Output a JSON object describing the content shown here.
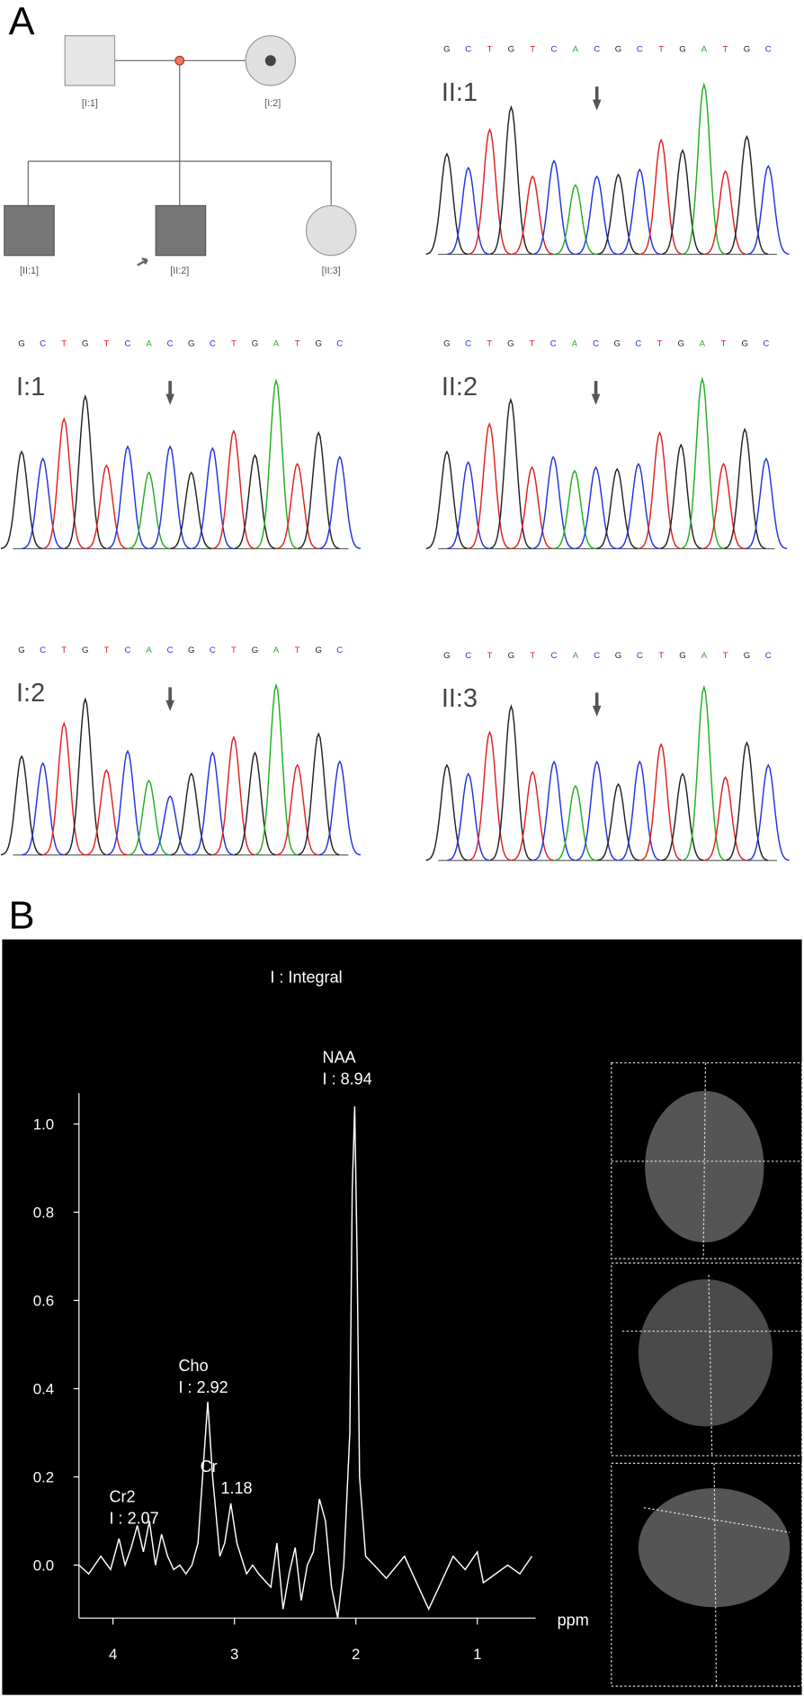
{
  "panel_a": {
    "label": "A",
    "pedigree": {
      "nodes": [
        {
          "label": "[I:1]"
        },
        {
          "label": "[I:2]"
        },
        {
          "label": "[II:1]"
        },
        {
          "label": "[II:2]"
        },
        {
          "label": "[II:3]"
        }
      ]
    },
    "sequence": [
      "G",
      "C",
      "T",
      "G",
      "T",
      "C",
      "A",
      "C",
      "G",
      "C",
      "T",
      "G",
      "A",
      "T",
      "G",
      "C"
    ],
    "base_colors": {
      "G": "#222222",
      "C": "#2233dd",
      "T": "#e02020",
      "A": "#20b020"
    },
    "chromatograms": [
      {
        "label": "II:1",
        "peaks": [
          0.58,
          0.5,
          0.72,
          0.85,
          0.45,
          0.54,
          0.4,
          0.45,
          0.46,
          0.49,
          0.66,
          0.6,
          0.98,
          0.48,
          0.68,
          0.51
        ]
      },
      {
        "label": "I:1",
        "peaks": [
          0.56,
          0.52,
          0.75,
          0.88,
          0.48,
          0.59,
          0.44,
          0.59,
          0.44,
          0.58,
          0.68,
          0.54,
          0.97,
          0.49,
          0.67,
          0.53
        ]
      },
      {
        "label": "II:2",
        "peaks": [
          0.56,
          0.5,
          0.72,
          0.86,
          0.47,
          0.53,
          0.45,
          0.47,
          0.46,
          0.49,
          0.67,
          0.6,
          0.98,
          0.49,
          0.69,
          0.52
        ]
      },
      {
        "label": "I:2",
        "peaks": [
          0.57,
          0.53,
          0.76,
          0.9,
          0.49,
          0.6,
          0.43,
          0.34,
          0.47,
          0.59,
          0.68,
          0.59,
          0.98,
          0.52,
          0.7,
          0.54
        ]
      },
      {
        "label": "II:3",
        "peaks": [
          0.55,
          0.5,
          0.74,
          0.89,
          0.51,
          0.57,
          0.43,
          0.57,
          0.44,
          0.57,
          0.67,
          0.5,
          1.0,
          0.48,
          0.68,
          0.55
        ]
      }
    ]
  },
  "chart_data": {
    "type": "line",
    "panel_label": "B",
    "title": "I : Integral",
    "x_label": "ppm",
    "color": "#ffffff",
    "x": [
      4.28,
      4.2,
      4.1,
      4.02,
      3.95,
      3.9,
      3.85,
      3.8,
      3.75,
      3.7,
      3.65,
      3.6,
      3.55,
      3.5,
      3.45,
      3.4,
      3.35,
      3.3,
      3.25,
      3.22,
      3.18,
      3.12,
      3.08,
      3.03,
      2.98,
      2.9,
      2.85,
      2.8,
      2.7,
      2.65,
      2.6,
      2.55,
      2.5,
      2.45,
      2.4,
      2.35,
      2.3,
      2.25,
      2.2,
      2.15,
      2.1,
      2.05,
      2.03,
      2.01,
      1.99,
      1.97,
      1.92,
      1.85,
      1.75,
      1.6,
      1.5,
      1.4,
      1.3,
      1.2,
      1.1,
      1.0,
      0.95,
      0.85,
      0.75,
      0.65,
      0.55
    ],
    "values": [
      0.0,
      -0.02,
      0.02,
      -0.01,
      0.06,
      0.0,
      0.04,
      0.09,
      0.03,
      0.1,
      0.0,
      0.07,
      0.02,
      -0.01,
      0.0,
      -0.02,
      0.0,
      0.05,
      0.25,
      0.37,
      0.2,
      0.02,
      0.05,
      0.14,
      0.05,
      -0.02,
      0.0,
      -0.02,
      -0.05,
      0.05,
      -0.1,
      -0.02,
      0.04,
      -0.08,
      0.0,
      0.03,
      0.15,
      0.1,
      -0.05,
      -0.12,
      0.0,
      0.3,
      0.85,
      1.04,
      0.7,
      0.2,
      0.02,
      0.0,
      -0.03,
      0.02,
      -0.04,
      -0.1,
      -0.04,
      0.02,
      -0.01,
      0.03,
      -0.04,
      -0.02,
      0.0,
      -0.02,
      0.02
    ],
    "xlim": [
      4.28,
      0.52
    ],
    "ylim": [
      -0.12,
      1.07
    ],
    "xticks": [
      4,
      3,
      2,
      1
    ],
    "yticks": [
      {
        "value": 0,
        "label": "0.0"
      },
      {
        "value": 0.2,
        "label": "0.2"
      },
      {
        "value": 0.4,
        "label": "0.4"
      },
      {
        "value": 0.6,
        "label": "0.6"
      },
      {
        "value": 0.8,
        "label": "0.8"
      },
      {
        "value": 1,
        "label": "1.0"
      }
    ],
    "annotations": [
      {
        "lines": [
          "NAA",
          "I : 8.94"
        ]
      },
      {
        "lines": [
          "Cho",
          "I : 2.92"
        ]
      },
      {
        "lines": [
          "Cr",
          "1.18"
        ]
      },
      {
        "lines": [
          "Cr2",
          "I : 2.07"
        ]
      }
    ]
  }
}
